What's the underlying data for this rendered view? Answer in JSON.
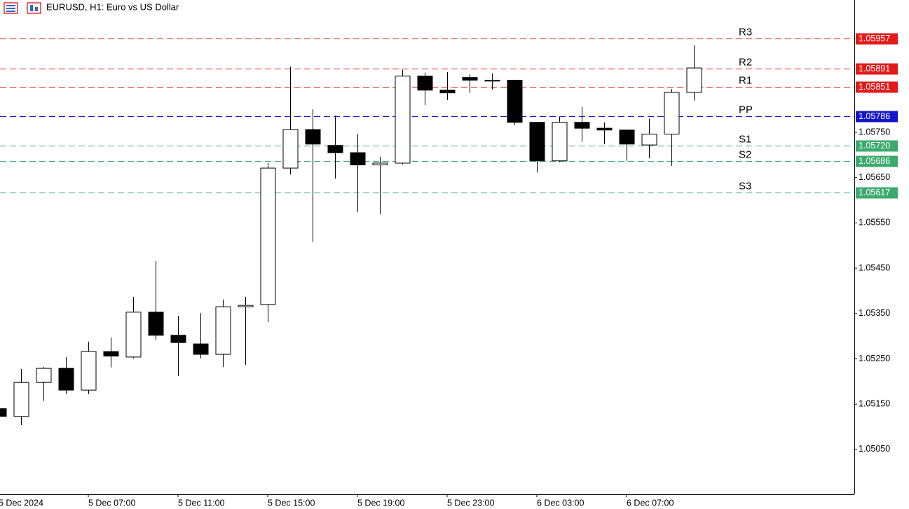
{
  "chart_data": {
    "type": "candlestick",
    "title": "EURUSD, H1:  Euro vs US Dollar",
    "categories": [
      "5 Dec 2024",
      null,
      null,
      null,
      "5 Dec 07:00",
      null,
      null,
      null,
      "5 Dec 11:00",
      null,
      null,
      null,
      "5 Dec 15:00",
      null,
      null,
      null,
      "5 Dec 19:00",
      null,
      null,
      null,
      "5 Dec 23:00",
      null,
      null,
      null,
      "6 Dec 03:00",
      null,
      null,
      null,
      "6 Dec 07:00",
      null,
      null,
      null
    ],
    "open": [
      1.0514,
      1.05123,
      1.05198,
      1.05229,
      1.05181,
      1.05266,
      1.05254,
      1.05353,
      1.05302,
      1.05283,
      1.0526,
      1.05365,
      1.0537,
      1.05671,
      1.05756,
      1.05721,
      1.05705,
      1.05678,
      1.05682,
      1.05874,
      1.05843,
      1.05871,
      1.05863,
      1.05865,
      1.05772,
      1.05687,
      1.05772,
      1.05759,
      1.05755,
      1.05722,
      1.05746,
      1.05838
    ],
    "high": [
      1.0514,
      1.05228,
      1.05232,
      1.05254,
      1.05288,
      1.05297,
      1.05387,
      1.05466,
      1.05345,
      1.05351,
      1.05381,
      1.05387,
      1.05682,
      1.05895,
      1.05801,
      1.05787,
      1.05747,
      1.05696,
      1.05888,
      1.05882,
      1.05883,
      1.05878,
      1.0588,
      1.05866,
      1.05772,
      1.05784,
      1.05806,
      1.05772,
      1.05755,
      1.0578,
      1.05846,
      1.05942
    ],
    "low": [
      1.05123,
      1.05104,
      1.05157,
      1.05172,
      1.05172,
      1.05231,
      1.05251,
      1.05291,
      1.05212,
      1.05251,
      1.05232,
      1.05237,
      1.05331,
      1.05657,
      1.05508,
      1.05648,
      1.05574,
      1.05569,
      1.05679,
      1.0581,
      1.05821,
      1.05837,
      1.05844,
      1.05766,
      1.05661,
      1.05684,
      1.05729,
      1.05724,
      1.05687,
      1.05693,
      1.05676,
      1.0582
    ],
    "close": [
      1.05123,
      1.05198,
      1.05229,
      1.05181,
      1.05266,
      1.05256,
      1.05353,
      1.05302,
      1.05286,
      1.0526,
      1.05365,
      1.05368,
      1.05671,
      1.05756,
      1.05724,
      1.05705,
      1.05678,
      1.05682,
      1.05874,
      1.05843,
      1.05837,
      1.05865,
      1.05865,
      1.05772,
      1.05687,
      1.05772,
      1.05759,
      1.05755,
      1.05724,
      1.05746,
      1.05838,
      1.05892
    ],
    "up_color": "#ffffff",
    "down_color": "#000000",
    "ylim": [
      1.04951,
      1.06042
    ],
    "yticks": [
      {
        "value": 1.0505,
        "label": "1.05050"
      },
      {
        "value": 1.0515,
        "label": "1.05150"
      },
      {
        "value": 1.0525,
        "label": "1.05250"
      },
      {
        "value": 1.0535,
        "label": "1.05350"
      },
      {
        "value": 1.0545,
        "label": "1.05450"
      },
      {
        "value": 1.0555,
        "label": "1.05550"
      },
      {
        "value": 1.0565,
        "label": "1.05650"
      },
      {
        "value": 1.0575,
        "label": "1.05750"
      }
    ],
    "pivots": [
      {
        "name": "R3",
        "value": 1.05957,
        "label": "1.05957",
        "color": "#e21b1b"
      },
      {
        "name": "R2",
        "value": 1.05891,
        "label": "1.05891",
        "color": "#e21b1b"
      },
      {
        "name": "R1",
        "value": 1.05851,
        "label": "1.05851",
        "color": "#e21b1b"
      },
      {
        "name": "PP",
        "value": 1.05786,
        "label": "1.05786",
        "color": "#1515c8"
      },
      {
        "name": "S1",
        "value": 1.0572,
        "label": "1.05720",
        "color": "#3caa6e"
      },
      {
        "name": "S2",
        "value": 1.05686,
        "label": "1.05686",
        "color": "#3caa6e"
      },
      {
        "name": "S3",
        "value": 1.05617,
        "label": "1.05617",
        "color": "#3caa6e"
      }
    ]
  }
}
